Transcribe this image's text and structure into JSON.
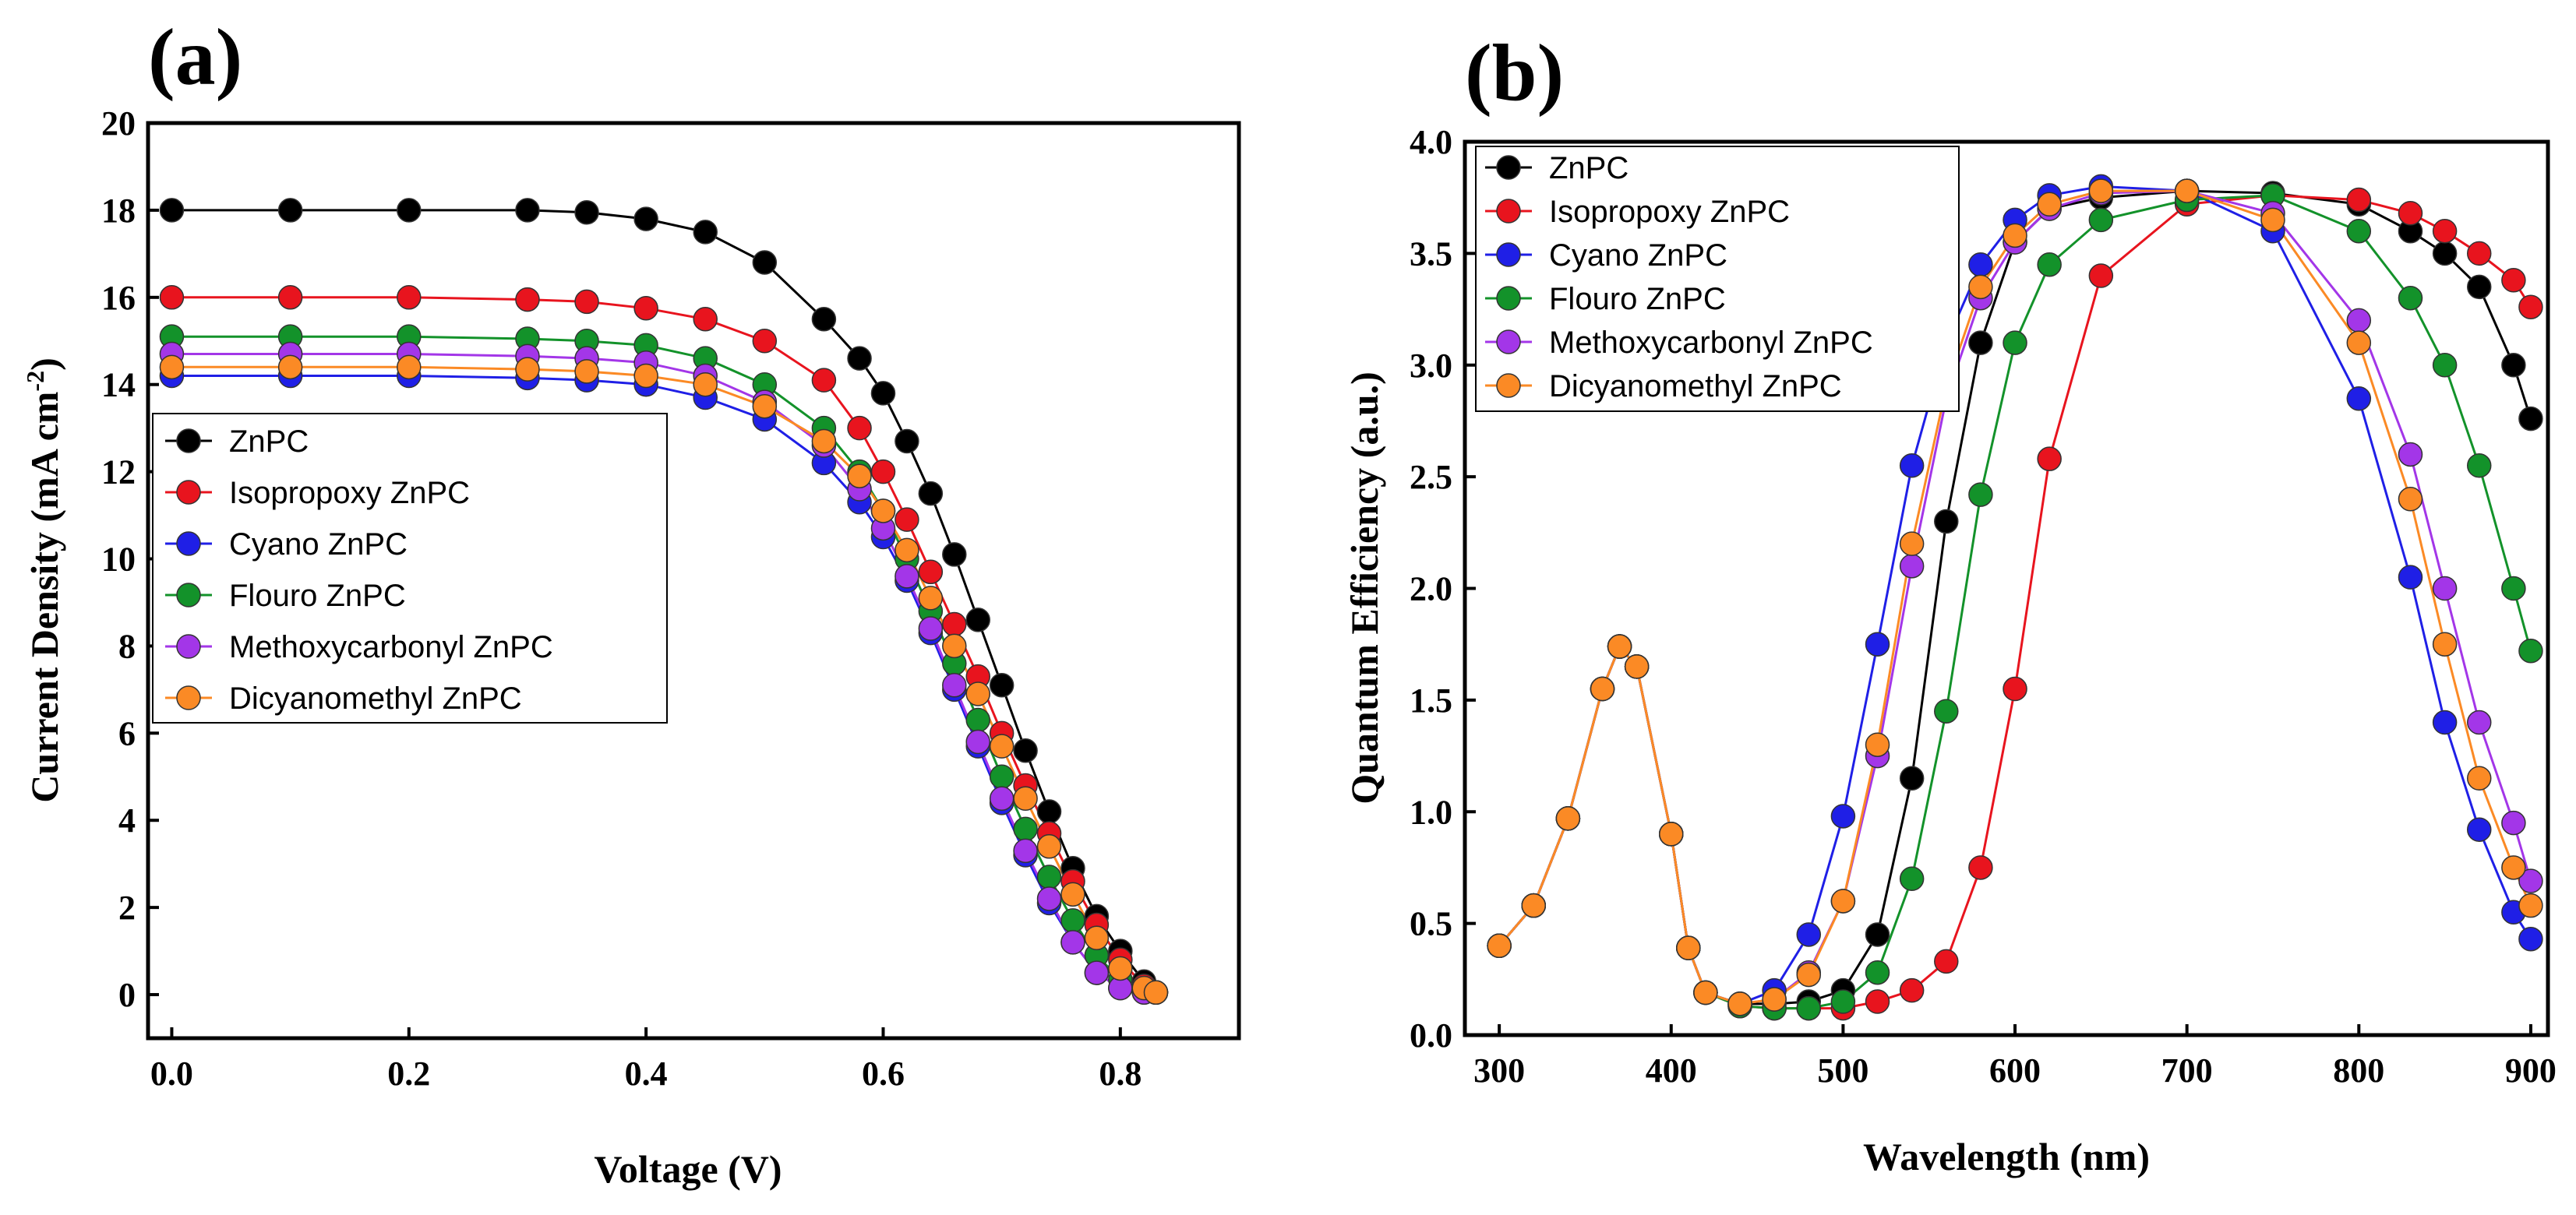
{
  "chart_data": [
    {
      "type": "line",
      "panel_label": "(a)",
      "title": "",
      "xlabel": "Voltage (V)",
      "ylabel": "Current Density (mA cm",
      "ylabel_sup": "-2",
      "ylabel_close": ")",
      "xlim": [
        -0.02,
        0.9
      ],
      "ylim": [
        -1,
        20
      ],
      "xticks": [
        0.0,
        0.2,
        0.4,
        0.6,
        0.8
      ],
      "xtick_labels": [
        "0.0",
        "0.2",
        "0.4",
        "0.6",
        "0.8"
      ],
      "yticks": [
        0,
        2,
        4,
        6,
        8,
        10,
        12,
        14,
        16,
        18,
        20
      ],
      "ytick_labels": [
        "0",
        "2",
        "4",
        "6",
        "8",
        "10",
        "12",
        "14",
        "16",
        "18",
        "20"
      ],
      "legend_position": "middle-left",
      "series": [
        {
          "name": "ZnPC",
          "color": "#000000",
          "x": [
            0,
            0.1,
            0.2,
            0.3,
            0.35,
            0.4,
            0.45,
            0.5,
            0.55,
            0.58,
            0.6,
            0.62,
            0.64,
            0.66,
            0.68,
            0.7,
            0.72,
            0.74,
            0.76,
            0.78,
            0.8,
            0.82,
            0.83
          ],
          "y": [
            18,
            18,
            18,
            18,
            17.95,
            17.8,
            17.5,
            16.8,
            15.5,
            14.6,
            13.8,
            12.7,
            11.5,
            10.1,
            8.6,
            7.1,
            5.6,
            4.2,
            2.9,
            1.8,
            1.0,
            0.3,
            0.05
          ]
        },
        {
          "name": "Isopropoxy ZnPC",
          "color": "#e8141e",
          "x": [
            0,
            0.1,
            0.2,
            0.3,
            0.35,
            0.4,
            0.45,
            0.5,
            0.55,
            0.58,
            0.6,
            0.62,
            0.64,
            0.66,
            0.68,
            0.7,
            0.72,
            0.74,
            0.76,
            0.78,
            0.8,
            0.82,
            0.83
          ],
          "y": [
            16,
            16,
            16,
            15.95,
            15.9,
            15.75,
            15.5,
            15.0,
            14.1,
            13.0,
            12.0,
            10.9,
            9.7,
            8.5,
            7.3,
            6.0,
            4.8,
            3.7,
            2.6,
            1.6,
            0.8,
            0.2,
            0.05
          ]
        },
        {
          "name": "Cyano ZnPC",
          "color": "#1f1fe6",
          "x": [
            0,
            0.1,
            0.2,
            0.3,
            0.35,
            0.4,
            0.45,
            0.5,
            0.55,
            0.58,
            0.6,
            0.62,
            0.64,
            0.66,
            0.68,
            0.7,
            0.72,
            0.74,
            0.76,
            0.78,
            0.8,
            0.82,
            0.83
          ],
          "y": [
            14.2,
            14.2,
            14.2,
            14.15,
            14.1,
            14.0,
            13.7,
            13.2,
            12.2,
            11.3,
            10.5,
            9.5,
            8.3,
            7.0,
            5.7,
            4.4,
            3.2,
            2.1,
            1.2,
            0.5,
            0.15,
            0.05,
            0.05
          ]
        },
        {
          "name": "Flouro ZnPC",
          "color": "#13922a",
          "x": [
            0,
            0.1,
            0.2,
            0.3,
            0.35,
            0.4,
            0.45,
            0.5,
            0.55,
            0.58,
            0.6,
            0.62,
            0.64,
            0.66,
            0.68,
            0.7,
            0.72,
            0.74,
            0.76,
            0.78,
            0.8,
            0.82,
            0.83
          ],
          "y": [
            15.1,
            15.1,
            15.1,
            15.05,
            15.0,
            14.9,
            14.6,
            14.0,
            13.0,
            12.0,
            11.1,
            10.0,
            8.8,
            7.6,
            6.3,
            5.0,
            3.8,
            2.7,
            1.7,
            0.9,
            0.35,
            0.08,
            0.05
          ]
        },
        {
          "name": "Methoxycarbonyl ZnPC",
          "color": "#a336e8",
          "x": [
            0,
            0.1,
            0.2,
            0.3,
            0.35,
            0.4,
            0.45,
            0.5,
            0.55,
            0.58,
            0.6,
            0.62,
            0.64,
            0.66,
            0.68,
            0.7,
            0.72,
            0.74,
            0.76,
            0.78,
            0.8,
            0.82,
            0.83
          ],
          "y": [
            14.7,
            14.7,
            14.7,
            14.65,
            14.6,
            14.5,
            14.2,
            13.6,
            12.6,
            11.6,
            10.7,
            9.6,
            8.4,
            7.1,
            5.8,
            4.5,
            3.3,
            2.2,
            1.2,
            0.5,
            0.15,
            0.05,
            0.05
          ]
        },
        {
          "name": "Dicyanomethyl ZnPC",
          "color": "#fb8a25",
          "x": [
            0,
            0.1,
            0.2,
            0.3,
            0.35,
            0.4,
            0.45,
            0.5,
            0.55,
            0.58,
            0.6,
            0.62,
            0.64,
            0.66,
            0.68,
            0.7,
            0.72,
            0.74,
            0.76,
            0.78,
            0.8,
            0.82,
            0.83
          ],
          "y": [
            14.4,
            14.4,
            14.4,
            14.35,
            14.3,
            14.2,
            14.0,
            13.5,
            12.7,
            11.9,
            11.1,
            10.2,
            9.1,
            8.0,
            6.9,
            5.7,
            4.5,
            3.4,
            2.3,
            1.3,
            0.6,
            0.15,
            0.05
          ]
        }
      ]
    },
    {
      "type": "line",
      "panel_label": "(b)",
      "title": "",
      "xlabel": "Wavelength (nm)",
      "ylabel": "Quantum Efficiency (a.u.)",
      "xlim": [
        280,
        910
      ],
      "ylim": [
        0,
        4.0
      ],
      "xticks": [
        300,
        400,
        500,
        600,
        700,
        800,
        900
      ],
      "xtick_labels": [
        "300",
        "400",
        "500",
        "600",
        "700",
        "800",
        "900"
      ],
      "yticks": [
        0.0,
        0.5,
        1.0,
        1.5,
        2.0,
        2.5,
        3.0,
        3.5,
        4.0
      ],
      "ytick_labels": [
        "0.0",
        "0.5",
        "1.0",
        "1.5",
        "2.0",
        "2.5",
        "3.0",
        "3.5",
        "4.0"
      ],
      "legend_position": "top-left",
      "series": [
        {
          "name": "ZnPC",
          "color": "#000000",
          "x": [
            300,
            320,
            340,
            360,
            370,
            380,
            400,
            410,
            420,
            440,
            460,
            480,
            500,
            520,
            540,
            560,
            580,
            600,
            620,
            650,
            700,
            750,
            800,
            830,
            850,
            870,
            890,
            900
          ],
          "y": [
            0.4,
            0.58,
            0.97,
            1.55,
            1.74,
            1.65,
            0.9,
            0.39,
            0.19,
            0.14,
            0.14,
            0.15,
            0.2,
            0.45,
            1.15,
            2.3,
            3.1,
            3.55,
            3.7,
            3.75,
            3.78,
            3.77,
            3.72,
            3.6,
            3.5,
            3.35,
            3.0,
            2.76
          ]
        },
        {
          "name": "Isopropoxy ZnPC",
          "color": "#e8141e",
          "x": [
            300,
            320,
            340,
            360,
            370,
            380,
            400,
            410,
            420,
            440,
            460,
            480,
            500,
            520,
            540,
            560,
            580,
            600,
            620,
            650,
            700,
            750,
            800,
            830,
            850,
            870,
            890,
            900
          ],
          "y": [
            0.4,
            0.58,
            0.97,
            1.55,
            1.74,
            1.65,
            0.9,
            0.39,
            0.19,
            0.13,
            0.12,
            0.12,
            0.12,
            0.15,
            0.2,
            0.33,
            0.75,
            1.55,
            2.58,
            3.4,
            3.72,
            3.76,
            3.74,
            3.68,
            3.6,
            3.5,
            3.38,
            3.26
          ]
        },
        {
          "name": "Cyano ZnPC",
          "color": "#1f1fe6",
          "x": [
            300,
            320,
            340,
            360,
            370,
            380,
            400,
            410,
            420,
            440,
            460,
            480,
            500,
            520,
            540,
            560,
            580,
            600,
            620,
            650,
            700,
            750,
            800,
            830,
            850,
            870,
            890,
            900
          ],
          "y": [
            0.4,
            0.58,
            0.97,
            1.55,
            1.74,
            1.65,
            0.9,
            0.39,
            0.19,
            0.14,
            0.2,
            0.45,
            0.98,
            1.75,
            2.55,
            3.1,
            3.45,
            3.65,
            3.76,
            3.8,
            3.78,
            3.6,
            2.85,
            2.05,
            1.4,
            0.92,
            0.55,
            0.43
          ]
        },
        {
          "name": "Flouro ZnPC",
          "color": "#13922a",
          "x": [
            300,
            320,
            340,
            360,
            370,
            380,
            400,
            410,
            420,
            440,
            460,
            480,
            500,
            520,
            540,
            560,
            580,
            600,
            620,
            650,
            700,
            750,
            800,
            830,
            850,
            870,
            890,
            900
          ],
          "y": [
            0.4,
            0.58,
            0.97,
            1.55,
            1.74,
            1.65,
            0.9,
            0.39,
            0.19,
            0.13,
            0.12,
            0.12,
            0.15,
            0.28,
            0.7,
            1.45,
            2.42,
            3.1,
            3.45,
            3.65,
            3.74,
            3.76,
            3.6,
            3.3,
            3.0,
            2.55,
            2.0,
            1.72
          ]
        },
        {
          "name": "Methoxycarbonyl ZnPC",
          "color": "#a336e8",
          "x": [
            300,
            320,
            340,
            360,
            370,
            380,
            400,
            410,
            420,
            440,
            460,
            480,
            500,
            520,
            540,
            560,
            580,
            600,
            620,
            650,
            700,
            750,
            800,
            830,
            850,
            870,
            890,
            900
          ],
          "y": [
            0.4,
            0.58,
            0.97,
            1.55,
            1.74,
            1.65,
            0.9,
            0.39,
            0.19,
            0.14,
            0.16,
            0.28,
            0.6,
            1.25,
            2.1,
            2.85,
            3.3,
            3.55,
            3.7,
            3.77,
            3.78,
            3.68,
            3.2,
            2.6,
            2.0,
            1.4,
            0.95,
            0.69
          ]
        },
        {
          "name": "Dicyanomethyl ZnPC",
          "color": "#fb8a25",
          "x": [
            300,
            320,
            340,
            360,
            370,
            380,
            400,
            410,
            420,
            440,
            460,
            480,
            500,
            520,
            540,
            560,
            580,
            600,
            620,
            650,
            700,
            750,
            800,
            830,
            850,
            870,
            890,
            900
          ],
          "y": [
            0.4,
            0.58,
            0.97,
            1.55,
            1.74,
            1.65,
            0.9,
            0.39,
            0.19,
            0.14,
            0.16,
            0.27,
            0.6,
            1.3,
            2.2,
            2.9,
            3.35,
            3.58,
            3.72,
            3.78,
            3.78,
            3.65,
            3.1,
            2.4,
            1.75,
            1.15,
            0.75,
            0.58
          ]
        }
      ]
    }
  ]
}
